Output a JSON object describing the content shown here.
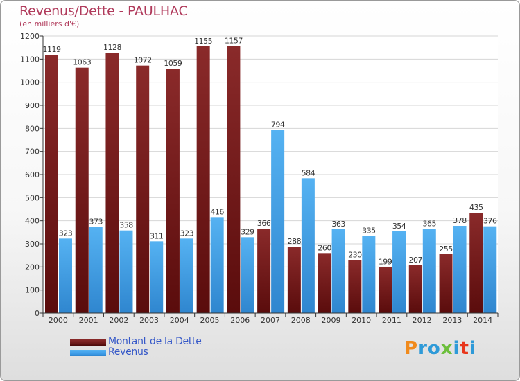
{
  "title": "Revenus/Dette - PAULHAC",
  "subtitle": "(en milliers d'€)",
  "logo": {
    "text": "Proxiti",
    "colors": [
      "#f08a1c",
      "#2e9ad8",
      "#2e9ad8",
      "#6cbf3c",
      "#2e9ad8",
      "#e8361b",
      "#2e9ad8"
    ]
  },
  "colors": {
    "dette": "#6e1a1a",
    "revenus": "#3e9de8",
    "title": "#b03a5b",
    "legend_text": "#3558c8"
  },
  "chart_data": {
    "type": "bar",
    "title": "Revenus/Dette - PAULHAC",
    "subtitle": "(en milliers d'€)",
    "categories": [
      "2000",
      "2001",
      "2002",
      "2003",
      "2004",
      "2005",
      "2006",
      "2007",
      "2008",
      "2009",
      "2010",
      "2011",
      "2012",
      "2013",
      "2014"
    ],
    "series": [
      {
        "name": "Montant de la Dette",
        "values": [
          1119,
          1063,
          1128,
          1072,
          1059,
          1155,
          1157,
          366,
          288,
          260,
          230,
          199,
          207,
          255,
          435
        ]
      },
      {
        "name": "Revenus",
        "values": [
          323,
          373,
          358,
          311,
          323,
          416,
          329,
          794,
          584,
          363,
          335,
          354,
          365,
          378,
          376
        ]
      }
    ],
    "ylim": [
      0,
      1200
    ],
    "yticks": [
      0,
      100,
      200,
      300,
      400,
      500,
      600,
      700,
      800,
      900,
      1000,
      1100,
      1200
    ],
    "grid": true,
    "legend_position": "bottom-left"
  }
}
